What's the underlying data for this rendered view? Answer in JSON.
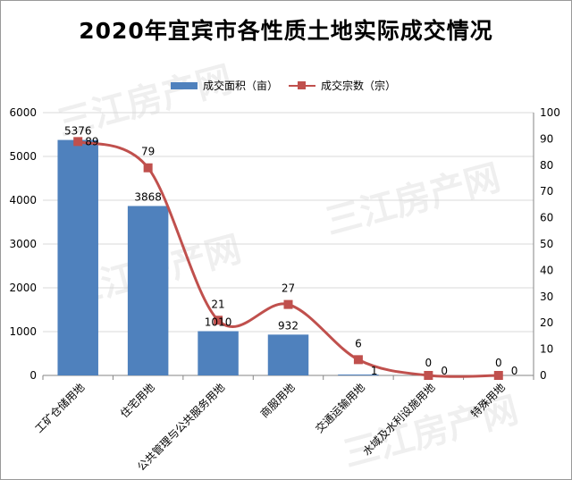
{
  "title": "2020年宜宾市各性质土地实际成交情况",
  "watermark": "三江房产网",
  "colors": {
    "bar": "#4F81BD",
    "line": "#C0504D",
    "grid": "#D9D9D9"
  },
  "chart_data": {
    "type": "bar+line",
    "categories": [
      "工矿仓储用地",
      "住宅用地",
      "公共管理与公共服务用地",
      "商服用地",
      "交通运输用地",
      "水域及水利设施用地",
      "特殊用地"
    ],
    "series": [
      {
        "name": "成交面积（亩）",
        "type": "bar",
        "axis": "left",
        "values": [
          5376,
          3868,
          1010,
          932,
          1,
          0,
          0
        ]
      },
      {
        "name": "成交宗数（宗）",
        "type": "line",
        "axis": "right",
        "values": [
          89,
          79,
          21,
          27,
          6,
          0,
          0
        ]
      }
    ],
    "y_left": {
      "min": 0,
      "max": 6000,
      "ticks": [
        0,
        1000,
        2000,
        3000,
        4000,
        5000,
        6000
      ]
    },
    "y_right": {
      "min": 0,
      "max": 100,
      "ticks": [
        0,
        10,
        20,
        30,
        40,
        50,
        60,
        70,
        80,
        90,
        100
      ]
    },
    "legend_position": "top",
    "grid": true
  }
}
